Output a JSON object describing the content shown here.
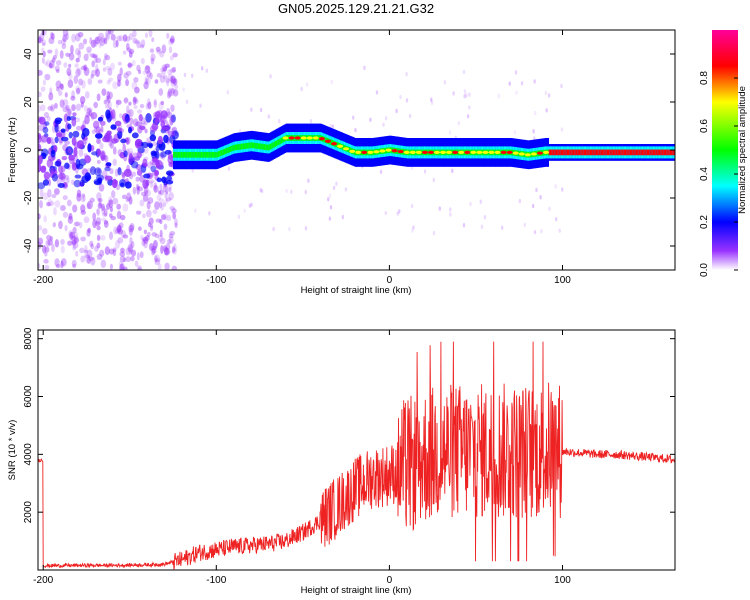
{
  "title": "GN05.2025.129.21.21.G32",
  "chart_data": [
    {
      "type": "heatmap",
      "xlabel": "Height of straight line (km)",
      "ylabel": "Frequency (Hz)",
      "xlim": [
        -203,
        165
      ],
      "ylim": [
        -50,
        50
      ],
      "xticks": [
        "-200",
        "-100",
        "0",
        "100"
      ],
      "yticks": [
        "40",
        "20",
        "0",
        "-20",
        "-40"
      ],
      "colorbar": {
        "label": "Normalized spectral amplitude",
        "range": [
          0,
          1
        ],
        "ticks": [
          "0.0",
          "0.2",
          "0.4",
          "0.6",
          "0.8"
        ],
        "colors": [
          "#ffffff",
          "#9933ff",
          "#0000ff",
          "#00ffff",
          "#00ff00",
          "#ffff00",
          "#ff0000",
          "#ff0099"
        ]
      },
      "ridge": [
        [
          -200,
          0
        ],
        [
          -150,
          0
        ],
        [
          -125,
          -2
        ],
        [
          -110,
          -2
        ],
        [
          -100,
          -2
        ],
        [
          -90,
          1
        ],
        [
          -80,
          2
        ],
        [
          -70,
          1
        ],
        [
          -60,
          5
        ],
        [
          -50,
          5
        ],
        [
          -40,
          5
        ],
        [
          -30,
          2
        ],
        [
          -20,
          -1
        ],
        [
          -10,
          -1
        ],
        [
          0,
          0
        ],
        [
          10,
          -1
        ],
        [
          20,
          -1
        ],
        [
          30,
          -1
        ],
        [
          40,
          -1
        ],
        [
          50,
          -1
        ],
        [
          60,
          -1
        ],
        [
          70,
          -1
        ],
        [
          80,
          -2
        ],
        [
          90,
          -1
        ],
        [
          100,
          -1
        ],
        [
          120,
          -1
        ],
        [
          140,
          -1
        ],
        [
          165,
          -1
        ]
      ]
    },
    {
      "type": "line",
      "xlabel": "Height of straight line (km)",
      "ylabel": "SNR (10 * v/v)",
      "xlim": [
        -203,
        165
      ],
      "ylim": [
        0,
        8300
      ],
      "xticks": [
        "-200",
        "-100",
        "0",
        "100"
      ],
      "yticks": [
        "2000",
        "4000",
        "6000",
        "8000"
      ],
      "color": "#ee2222",
      "series": [
        {
          "x": [
            -200,
            -190,
            -180,
            -170,
            -160,
            -150,
            -140,
            -130,
            -120,
            -110,
            -100,
            -90,
            -80,
            -70,
            -60,
            -50,
            -40,
            -30,
            -20,
            -10,
            0,
            5,
            10,
            15,
            20,
            25,
            30,
            40,
            50,
            60,
            70,
            80,
            90,
            95,
            100,
            110,
            120,
            130,
            140,
            150,
            160,
            165
          ],
          "y": [
            150,
            150,
            160,
            160,
            160,
            170,
            180,
            200,
            350,
            600,
            700,
            800,
            850,
            900,
            1000,
            1300,
            1700,
            2200,
            2800,
            3200,
            3300,
            3400,
            3600,
            3700,
            3900,
            4000,
            4100,
            4100,
            4100,
            4100,
            4100,
            4100,
            4100,
            4300,
            4100,
            4050,
            4000,
            4000,
            3950,
            3900,
            3850,
            3800
          ]
        }
      ]
    }
  ]
}
